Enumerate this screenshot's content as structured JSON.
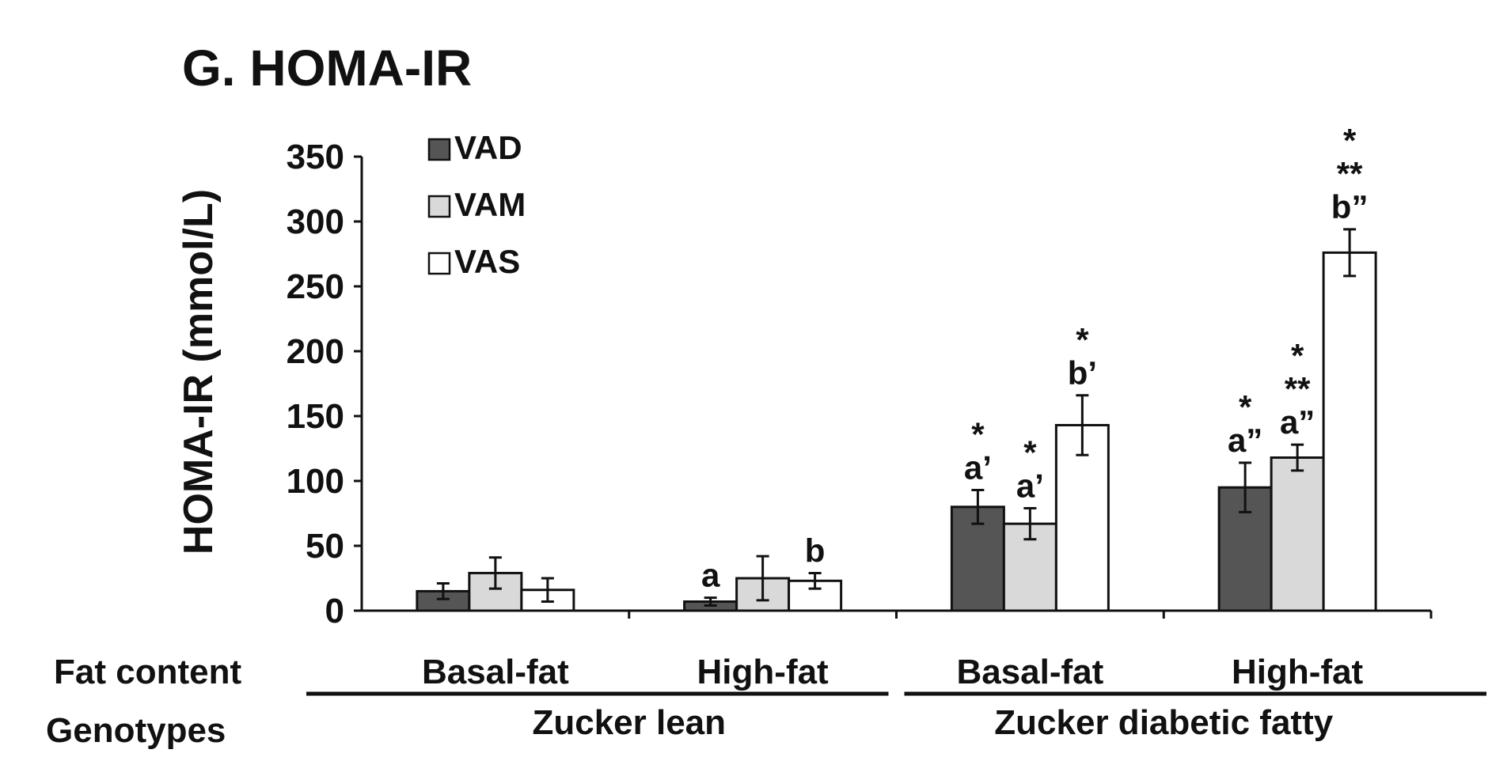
{
  "chart_data": {
    "type": "bar",
    "title": "G. HOMA-IR",
    "ylabel": "HOMA-IR (mmol/L)",
    "ylim": [
      0,
      350
    ],
    "yticks": [
      "0",
      "50",
      "100",
      "150",
      "200",
      "250",
      "300",
      "350"
    ],
    "grid": false,
    "legend_position": "top-left",
    "row_labels": {
      "fat": "Fat content",
      "genotype": "Genotypes"
    },
    "categories": [
      "Basal-fat",
      "High-fat",
      "Basal-fat",
      "High-fat"
    ],
    "genotypes": [
      {
        "label": "Zucker lean",
        "categories": [
          0,
          1
        ]
      },
      {
        "label": "Zucker diabetic fatty",
        "categories": [
          2,
          3
        ]
      }
    ],
    "series": [
      {
        "name": "VAD",
        "color": "#555555",
        "values": [
          15,
          7,
          80,
          95
        ],
        "errors": [
          6,
          3,
          13,
          19
        ],
        "annotations": [
          [],
          [
            "a"
          ],
          [
            "*",
            "a’"
          ],
          [
            "*",
            "a”"
          ]
        ]
      },
      {
        "name": "VAM",
        "color": "#d9d9d9",
        "values": [
          29,
          25,
          67,
          118
        ],
        "errors": [
          12,
          17,
          12,
          10
        ],
        "annotations": [
          [],
          [],
          [
            "*",
            "a’"
          ],
          [
            "*",
            "**",
            "a”"
          ]
        ]
      },
      {
        "name": "VAS",
        "color": "#ffffff",
        "values": [
          16,
          23,
          143,
          276
        ],
        "errors": [
          9,
          6,
          23,
          18
        ],
        "annotations": [
          [],
          [
            "b"
          ],
          [
            "*",
            "b’"
          ],
          [
            "*",
            "**",
            "b”"
          ]
        ]
      }
    ]
  }
}
